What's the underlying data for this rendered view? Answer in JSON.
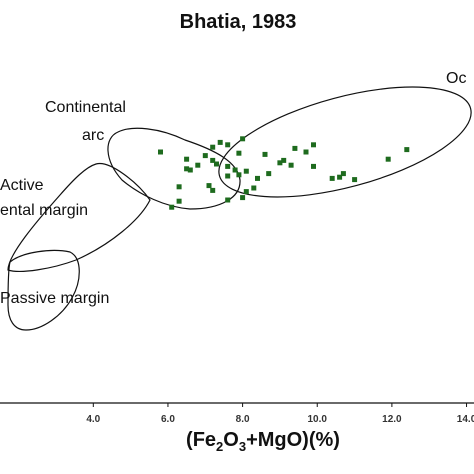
{
  "chart_data": {
    "type": "scatter",
    "title": "Bhatia, 1983",
    "xlabel": {
      "parts": [
        {
          "text": "(Fe",
          "sub": false
        },
        {
          "text": "2",
          "sub": true
        },
        {
          "text": "O",
          "sub": false
        },
        {
          "text": "3",
          "sub": true
        },
        {
          "text": "+MgO)(%)",
          "sub": false
        }
      ]
    },
    "ylabel": "",
    "xlim": [
      1.5,
      14.2
    ],
    "xticks": [
      {
        "value": 4,
        "label": "4.0"
      },
      {
        "value": 6,
        "label": "6.0"
      },
      {
        "value": 8,
        "label": "8.0"
      },
      {
        "value": 10,
        "label": "10.0"
      },
      {
        "value": 12,
        "label": "12.0"
      },
      {
        "value": 14,
        "label": "14.0"
      }
    ],
    "grid": false,
    "marker_color": "#1e6b1e",
    "field_labels": [
      {
        "text": "Continental"
      },
      {
        "text": "arc"
      },
      {
        "text": "Oc"
      },
      {
        "text": "Active"
      },
      {
        "text": "ental margin"
      },
      {
        "text": "Passive margin"
      }
    ],
    "points": [
      [
        5.8,
        0
      ],
      [
        6.5,
        -6
      ],
      [
        7.4,
        8
      ],
      [
        7.2,
        4
      ],
      [
        8.0,
        11
      ],
      [
        7.6,
        6
      ],
      [
        7.0,
        -3
      ],
      [
        7.9,
        -1
      ],
      [
        8.6,
        -2
      ],
      [
        6.8,
        -11
      ],
      [
        7.3,
        -10
      ],
      [
        7.6,
        -12
      ],
      [
        6.5,
        -14
      ],
      [
        6.6,
        -15
      ],
      [
        7.2,
        -7
      ],
      [
        7.8,
        -15
      ],
      [
        7.6,
        -20
      ],
      [
        7.9,
        -19
      ],
      [
        8.1,
        -16
      ],
      [
        8.4,
        -22
      ],
      [
        8.7,
        -18
      ],
      [
        9.0,
        -9
      ],
      [
        9.3,
        -11
      ],
      [
        9.7,
        0
      ],
      [
        9.9,
        6
      ],
      [
        9.4,
        3
      ],
      [
        9.1,
        -7
      ],
      [
        9.9,
        -12
      ],
      [
        10.7,
        -18
      ],
      [
        10.6,
        -21
      ],
      [
        10.4,
        -22
      ],
      [
        11.0,
        -23
      ],
      [
        11.9,
        -6
      ],
      [
        12.4,
        2
      ],
      [
        8.3,
        -30
      ],
      [
        7.1,
        -28
      ],
      [
        7.2,
        -32
      ],
      [
        7.6,
        -40
      ],
      [
        8.0,
        -38
      ],
      [
        8.1,
        -33
      ],
      [
        6.3,
        -29
      ],
      [
        6.3,
        -41
      ],
      [
        6.1,
        -46
      ]
    ]
  }
}
